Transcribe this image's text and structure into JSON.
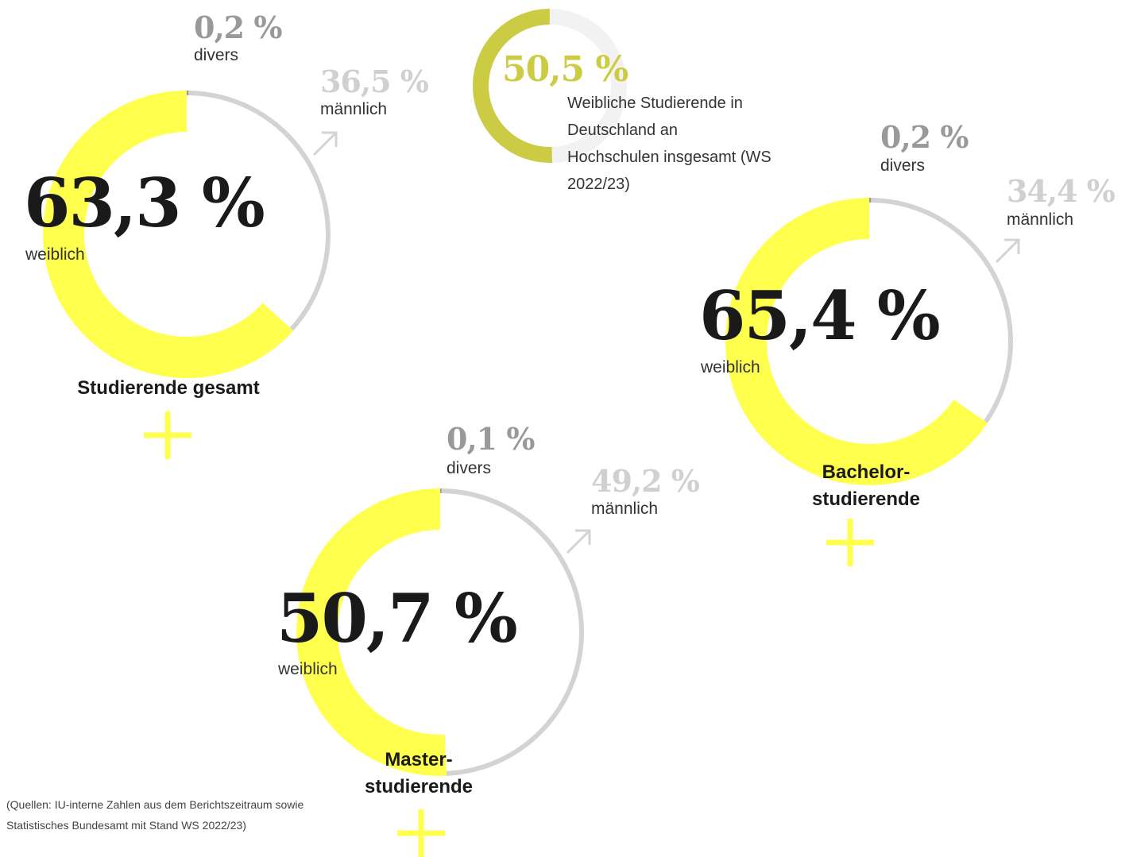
{
  "colors": {
    "female": "#ffff4d",
    "male_ring": "#d3d3d3",
    "divers": "#999999",
    "male_text": "#d0d0d0",
    "summary_accent": "#cccc44",
    "summary_track": "#f2f2f2",
    "text_dark": "#1a1a1a"
  },
  "summary": {
    "value": "50,5 %",
    "text": "Weibliche Studierende in Deutschland an Hochschulen insgesamt (WS 2022/23)",
    "fraction": 0.505
  },
  "charts": [
    {
      "title": "Studierende gesamt",
      "female": {
        "value": "63,3 %",
        "label": "weiblich"
      },
      "male": {
        "value": "36,5 %",
        "label": "männlich"
      },
      "divers": {
        "value": "0,2 %",
        "label": "divers"
      }
    },
    {
      "title": "Bachelor-studierende",
      "title_lines": [
        "Bachelor-",
        "studierende"
      ],
      "female": {
        "value": "65,4 %",
        "label": "weiblich"
      },
      "male": {
        "value": "34,4 %",
        "label": "männlich"
      },
      "divers": {
        "value": "0,2 %",
        "label": "divers"
      }
    },
    {
      "title": "Master-studierende",
      "title_lines": [
        "Master-",
        "studierende"
      ],
      "female": {
        "value": "50,7 %",
        "label": "weiblich"
      },
      "male": {
        "value": "49,2 %",
        "label": "männlich"
      },
      "divers": {
        "value": "0,1 %",
        "label": "divers"
      }
    }
  ],
  "source": "(Quellen: IU-interne Zahlen aus dem Berichtszeitraum sowie Statistisches Bundesamt mit Stand WS 2022/23)",
  "chart_data": {
    "type": "pie",
    "title": "",
    "charts": [
      {
        "name": "Studierende gesamt",
        "categories": [
          "weiblich",
          "männlich",
          "divers"
        ],
        "values": [
          63.3,
          36.5,
          0.2
        ]
      },
      {
        "name": "Bachelorstudierende",
        "categories": [
          "weiblich",
          "männlich",
          "divers"
        ],
        "values": [
          65.4,
          34.4,
          0.2
        ]
      },
      {
        "name": "Masterstudierende",
        "categories": [
          "weiblich",
          "männlich",
          "divers"
        ],
        "values": [
          50.7,
          49.2,
          0.1
        ]
      },
      {
        "name": "Weibliche Studierende in Deutschland an Hochschulen insgesamt (WS 2022/23)",
        "categories": [
          "weiblich"
        ],
        "values": [
          50.5
        ]
      }
    ]
  }
}
